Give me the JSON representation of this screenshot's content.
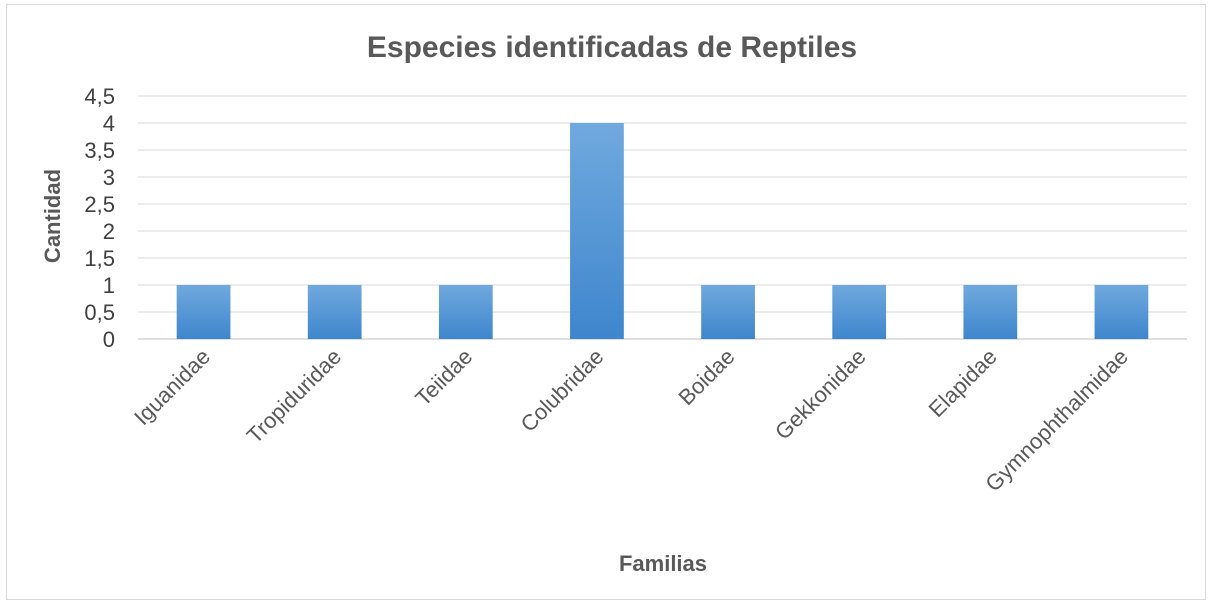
{
  "chart_data": {
    "type": "bar",
    "title": "Especies identificadas de Reptiles",
    "xlabel": "Familias",
    "ylabel": "Cantidad",
    "categories": [
      "Iguanidae",
      "Tropiduridae",
      "Teiidae",
      "Colubridae",
      "Boidae",
      "Gekkonidae",
      "Elapidae",
      "Gymnophthalmidae"
    ],
    "values": [
      1,
      1,
      1,
      4,
      1,
      1,
      1,
      1
    ],
    "y_ticks": [
      "0",
      "0,5",
      "1",
      "1,5",
      "2",
      "2,5",
      "3",
      "3,5",
      "4",
      "4,5"
    ],
    "ylim": [
      0,
      4.5
    ],
    "grid": true,
    "legend": "none",
    "colors": {
      "bar_top": "#6fa8dc",
      "bar_bottom": "#3f87cf",
      "grid": "#d9d9d9",
      "axis": "#bfbfbf"
    }
  }
}
